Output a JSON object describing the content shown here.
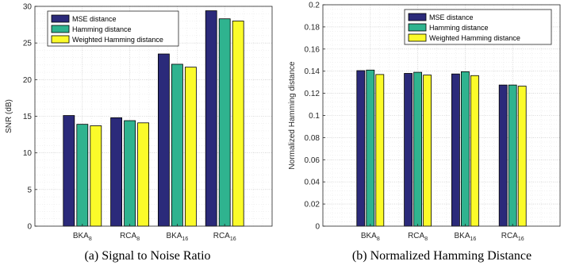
{
  "chart_data": [
    {
      "id": "a",
      "type": "bar",
      "caption": "(a) Signal to Noise Ratio",
      "ylabel": "SNR (dB)",
      "ylim": [
        0,
        30
      ],
      "yticks": [
        0,
        5,
        10,
        15,
        20,
        25,
        30
      ],
      "grid": true,
      "legend_position": "top-left",
      "categories": [
        {
          "base": "BKA",
          "sub": "8"
        },
        {
          "base": "RCA",
          "sub": "8"
        },
        {
          "base": "BKA",
          "sub": "16"
        },
        {
          "base": "RCA",
          "sub": "16"
        }
      ],
      "series": [
        {
          "name": "MSE distance",
          "color": "#2b2a7a",
          "values": [
            15.1,
            14.8,
            23.5,
            29.4
          ]
        },
        {
          "name": "Hamming distance",
          "color": "#2fb38f",
          "values": [
            13.9,
            14.4,
            22.1,
            28.3
          ]
        },
        {
          "name": "Weighted Hamming distance",
          "color": "#fbfb2a",
          "values": [
            13.7,
            14.1,
            21.7,
            28.0
          ]
        }
      ]
    },
    {
      "id": "b",
      "type": "bar",
      "caption": "(b) Normalized Hamming Distance",
      "ylabel": "Normalized Hamming distance",
      "ylim": [
        0,
        0.2
      ],
      "yticks": [
        0,
        0.02,
        0.04,
        0.06,
        0.08,
        0.1,
        0.12,
        0.14,
        0.16,
        0.18,
        0.2
      ],
      "grid": true,
      "legend_position": "top-right",
      "categories": [
        {
          "base": "BKA",
          "sub": "8"
        },
        {
          "base": "RCA",
          "sub": "8"
        },
        {
          "base": "BKA",
          "sub": "16"
        },
        {
          "base": "RCA",
          "sub": "16"
        }
      ],
      "series": [
        {
          "name": "MSE distance",
          "color": "#2b2a7a",
          "values": [
            0.1405,
            0.138,
            0.1375,
            0.1275
          ]
        },
        {
          "name": "Hamming distance",
          "color": "#2fb38f",
          "values": [
            0.141,
            0.139,
            0.1395,
            0.1275
          ]
        },
        {
          "name": "Weighted Hamming distance",
          "color": "#fbfb2a",
          "values": [
            0.137,
            0.1365,
            0.136,
            0.1265
          ]
        }
      ]
    }
  ]
}
